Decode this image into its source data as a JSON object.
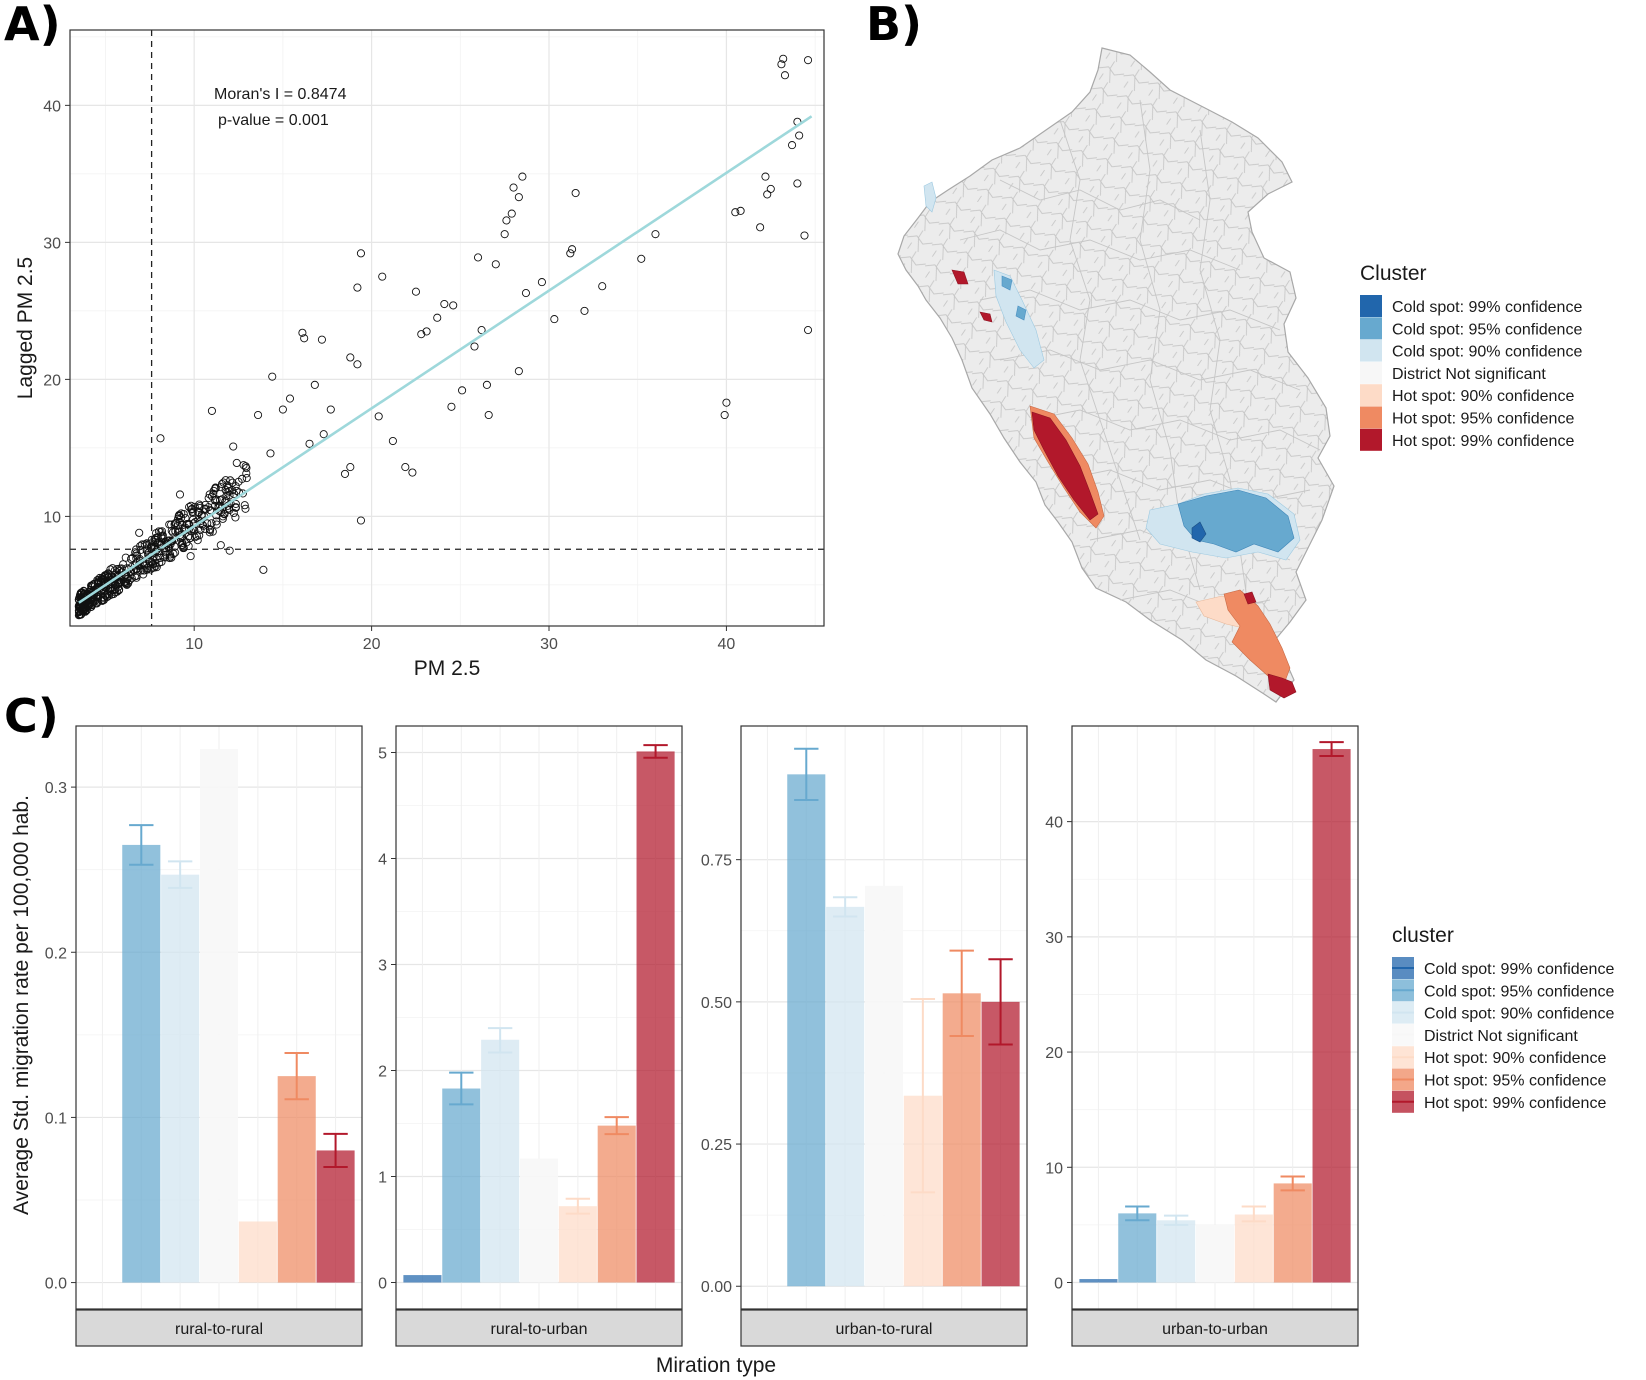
{
  "panels": {
    "a_letter": "A)",
    "b_letter": "B)",
    "c_letter": "C)"
  },
  "colors": {
    "cluster": [
      "#2166ac",
      "#67a9cf",
      "#d1e5f0",
      "#f7f7f7",
      "#fddbc7",
      "#ef8a62",
      "#b2182b"
    ],
    "regression": "#9ed8db",
    "map_border": "#bdbdbd",
    "map_fill": "#ebebeb"
  },
  "scatter": {
    "annotation_moran": "Moran's I = 0.8474",
    "annotation_pvalue": "p-value = 0.001"
  },
  "map": {
    "legend_title": "Cluster",
    "legend_items": [
      "Cold spot: 99% confidence",
      "Cold spot: 95% confidence",
      "Cold spot: 90% confidence",
      "District Not significant",
      "Hot spot: 90% confidence",
      "Hot spot: 95% confidence",
      "Hot spot: 99% confidence"
    ]
  },
  "bars": {
    "legend_title": "cluster",
    "legend_items": [
      "Cold spot: 99% confidence",
      "Cold spot: 95% confidence",
      "Cold spot: 90% confidence",
      "District Not significant",
      "Hot spot: 90% confidence",
      "Hot spot: 95% confidence",
      "Hot spot: 99% confidence"
    ]
  },
  "chart_data": [
    {
      "type": "scatter",
      "xlabel": "PM 2.5",
      "ylabel": "Lagged PM 2.5",
      "xlim": [
        3,
        45.5
      ],
      "ylim": [
        2,
        45.5
      ],
      "xticks": [
        10,
        20,
        30,
        40
      ],
      "yticks": [
        10,
        20,
        30,
        40
      ],
      "grid": true,
      "mean_x": 7.6,
      "mean_y": 7.6,
      "regression": {
        "x0": 3.5,
        "y0": 3.7,
        "x1": 44.8,
        "y1": 39.2
      },
      "points": [
        [
          19.4,
          29.2
        ],
        [
          20.6,
          27.5
        ],
        [
          19.2,
          26.7
        ],
        [
          22.5,
          26.4
        ],
        [
          23.7,
          24.5
        ],
        [
          24.1,
          25.5
        ],
        [
          24.6,
          25.4
        ],
        [
          23.1,
          23.5
        ],
        [
          22.8,
          23.3
        ],
        [
          26.0,
          28.9
        ],
        [
          27.0,
          28.4
        ],
        [
          27.5,
          30.6
        ],
        [
          27.9,
          32.1
        ],
        [
          28.0,
          34.0
        ],
        [
          28.5,
          34.8
        ],
        [
          27.6,
          31.6
        ],
        [
          28.3,
          33.3
        ],
        [
          28.7,
          26.3
        ],
        [
          29.6,
          27.1
        ],
        [
          31.5,
          33.6
        ],
        [
          31.3,
          29.5
        ],
        [
          32.0,
          25.0
        ],
        [
          26.2,
          23.6
        ],
        [
          25.8,
          22.4
        ],
        [
          28.3,
          20.6
        ],
        [
          26.5,
          19.6
        ],
        [
          26.6,
          17.4
        ],
        [
          24.5,
          18.0
        ],
        [
          25.1,
          19.2
        ],
        [
          21.9,
          13.6
        ],
        [
          22.3,
          13.2
        ],
        [
          19.4,
          9.7
        ],
        [
          16.1,
          23.4
        ],
        [
          16.2,
          23.0
        ],
        [
          17.2,
          22.9
        ],
        [
          18.8,
          21.6
        ],
        [
          19.2,
          21.1
        ],
        [
          16.8,
          19.6
        ],
        [
          17.7,
          17.8
        ],
        [
          17.3,
          16.0
        ],
        [
          18.5,
          13.1
        ],
        [
          18.8,
          13.6
        ],
        [
          15.4,
          18.6
        ],
        [
          15.0,
          17.8
        ],
        [
          13.6,
          17.4
        ],
        [
          14.4,
          20.2
        ],
        [
          11.0,
          17.7
        ],
        [
          13.9,
          6.1
        ],
        [
          8.1,
          15.7
        ],
        [
          12.0,
          7.5
        ],
        [
          40.0,
          18.3
        ],
        [
          39.9,
          17.4
        ],
        [
          43.1,
          43.0
        ],
        [
          43.2,
          43.4
        ],
        [
          43.3,
          42.2
        ],
        [
          44.6,
          43.3
        ],
        [
          44.0,
          38.8
        ],
        [
          44.1,
          37.8
        ],
        [
          43.7,
          37.1
        ],
        [
          42.2,
          34.8
        ],
        [
          42.5,
          33.9
        ],
        [
          42.3,
          33.5
        ],
        [
          44.0,
          34.3
        ],
        [
          44.4,
          30.5
        ],
        [
          41.9,
          31.1
        ],
        [
          40.8,
          32.3
        ],
        [
          40.5,
          32.2
        ],
        [
          44.6,
          23.6
        ],
        [
          35.2,
          28.8
        ],
        [
          36.0,
          30.6
        ],
        [
          31.2,
          29.2
        ],
        [
          33.0,
          26.8
        ],
        [
          30.3,
          24.4
        ],
        [
          21.2,
          15.5
        ],
        [
          20.4,
          17.3
        ],
        [
          16.5,
          15.3
        ],
        [
          14.3,
          14.6
        ],
        [
          12.2,
          15.1
        ],
        [
          12.4,
          13.9
        ],
        [
          9.8,
          7.1
        ],
        [
          11.5,
          7.9
        ],
        [
          10.9,
          9.0
        ],
        [
          9.2,
          11.6
        ],
        [
          8.7,
          9.4
        ],
        [
          6.9,
          8.8
        ],
        [
          5.9,
          6.2
        ],
        [
          6.2,
          5.4
        ],
        [
          5.1,
          5.3
        ],
        [
          4.8,
          4.6
        ],
        [
          4.4,
          4.9
        ]
      ]
    },
    {
      "type": "bar",
      "title": "",
      "xlabel": "Miration type",
      "ylabel": "Average Std. migration rate per 100,000 hab.",
      "series_names": [
        "Cold spot: 99% confidence",
        "Cold spot: 95% confidence",
        "Cold spot: 90% confidence",
        "District Not significant",
        "Hot spot: 90% confidence",
        "Hot spot: 95% confidence",
        "Hot spot: 99% confidence"
      ],
      "facets": [
        {
          "name": "rural-to-rural",
          "ylim": [
            -0.016,
            0.337
          ],
          "yticks": [
            0.0,
            0.1,
            0.2,
            0.3
          ],
          "ytick_labels": [
            "0.0",
            "0.1",
            "0.2",
            "0.3"
          ],
          "values": [
            null,
            0.265,
            0.247,
            0.323,
            0.037,
            0.125,
            0.08
          ],
          "err_low": [
            null,
            0.253,
            0.239,
            null,
            null,
            0.111,
            0.07
          ],
          "err_high": [
            null,
            0.277,
            0.255,
            null,
            null,
            0.139,
            0.09
          ]
        },
        {
          "name": "rural-to-urban",
          "ylim": [
            -0.25,
            5.25
          ],
          "yticks": [
            0,
            1,
            2,
            3,
            4,
            5
          ],
          "ytick_labels": [
            "0",
            "1",
            "2",
            "3",
            "4",
            "5"
          ],
          "values": [
            0.07,
            1.83,
            2.29,
            1.17,
            0.72,
            1.48,
            5.01
          ],
          "err_low": [
            null,
            1.68,
            2.17,
            null,
            0.65,
            1.4,
            4.95
          ],
          "err_high": [
            null,
            1.98,
            2.4,
            null,
            0.79,
            1.56,
            5.07
          ]
        },
        {
          "name": "urban-to-rural",
          "ylim": [
            -0.04,
            0.985
          ],
          "yticks": [
            0.0,
            0.25,
            0.5,
            0.75
          ],
          "ytick_labels": [
            "0.00",
            "0.25",
            "0.50",
            "0.75"
          ],
          "values": [
            null,
            0.9,
            0.667,
            0.704,
            0.335,
            0.515,
            0.5
          ],
          "err_low": [
            null,
            0.855,
            0.65,
            null,
            0.165,
            0.44,
            0.425
          ],
          "err_high": [
            null,
            0.945,
            0.684,
            null,
            0.505,
            0.59,
            0.575
          ]
        },
        {
          "name": "urban-to-urban",
          "ylim": [
            -2.3,
            48.3
          ],
          "yticks": [
            0,
            10,
            20,
            30,
            40
          ],
          "ytick_labels": [
            "0",
            "10",
            "20",
            "30",
            "40"
          ],
          "values": [
            0.3,
            6.0,
            5.4,
            5.0,
            5.9,
            8.6,
            46.3
          ],
          "err_low": [
            null,
            5.4,
            5.0,
            null,
            5.3,
            8.0,
            45.7
          ],
          "err_high": [
            null,
            6.6,
            5.8,
            null,
            6.6,
            9.2,
            46.9
          ]
        }
      ]
    }
  ]
}
